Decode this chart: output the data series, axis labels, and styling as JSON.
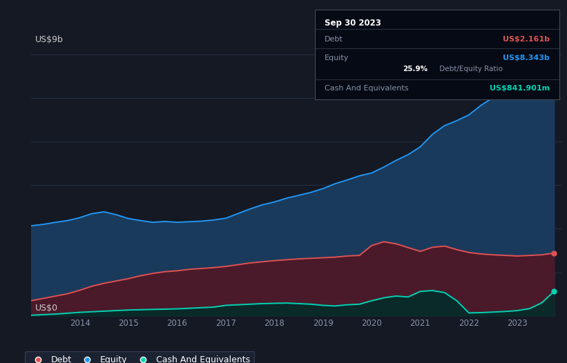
{
  "bg_color": "#141924",
  "plot_bg_color": "#141924",
  "title_y_label": "US$9b",
  "title_y_label_zero": "US$0",
  "ylabel_color": "#cccccc",
  "grid_color": "#252d3d",
  "equity_color": "#2196f3",
  "debt_color": "#e05252",
  "cash_color": "#00d4b4",
  "equity_fill": "#1a3a5c",
  "debt_fill": "#4a1a2a",
  "cash_fill": "#0a2a2a",
  "legend_bg": "#1e2535",
  "legend_border": "#3a4055",
  "tooltip_bg": "#050a14",
  "tooltip_border": "#333a4a",
  "tooltip_date": "Sep 30 2023",
  "tooltip_debt_label": "Debt",
  "tooltip_debt_value": "US$2.161b",
  "tooltip_equity_label": "Equity",
  "tooltip_equity_value": "US$8.343b",
  "tooltip_ratio_value": "25.9%",
  "tooltip_ratio_label": " Debt/Equity Ratio",
  "tooltip_cash_label": "Cash And Equivalents",
  "tooltip_cash_value": "US$841.901m",
  "legend_items": [
    "Debt",
    "Equity",
    "Cash And Equivalents"
  ],
  "x": [
    2013.0,
    2013.25,
    2013.5,
    2013.75,
    2014.0,
    2014.25,
    2014.5,
    2014.75,
    2015.0,
    2015.25,
    2015.5,
    2015.75,
    2016.0,
    2016.25,
    2016.5,
    2016.75,
    2017.0,
    2017.25,
    2017.5,
    2017.75,
    2018.0,
    2018.25,
    2018.5,
    2018.75,
    2019.0,
    2019.25,
    2019.5,
    2019.75,
    2020.0,
    2020.25,
    2020.5,
    2020.75,
    2021.0,
    2021.25,
    2021.5,
    2021.75,
    2022.0,
    2022.25,
    2022.5,
    2022.75,
    2023.0,
    2023.25,
    2023.5,
    2023.75
  ],
  "equity": [
    3.1,
    3.15,
    3.22,
    3.28,
    3.38,
    3.52,
    3.58,
    3.48,
    3.35,
    3.28,
    3.22,
    3.25,
    3.22,
    3.24,
    3.26,
    3.3,
    3.36,
    3.52,
    3.68,
    3.82,
    3.92,
    4.05,
    4.15,
    4.25,
    4.38,
    4.55,
    4.68,
    4.82,
    4.92,
    5.12,
    5.35,
    5.55,
    5.82,
    6.25,
    6.55,
    6.72,
    6.92,
    7.25,
    7.52,
    7.72,
    7.92,
    8.12,
    8.25,
    8.343
  ],
  "debt": [
    0.52,
    0.6,
    0.68,
    0.76,
    0.88,
    1.02,
    1.12,
    1.2,
    1.28,
    1.38,
    1.46,
    1.52,
    1.55,
    1.6,
    1.63,
    1.66,
    1.7,
    1.76,
    1.82,
    1.86,
    1.9,
    1.93,
    1.96,
    1.98,
    2.0,
    2.02,
    2.06,
    2.08,
    2.42,
    2.55,
    2.48,
    2.35,
    2.22,
    2.36,
    2.4,
    2.28,
    2.18,
    2.13,
    2.1,
    2.08,
    2.06,
    2.08,
    2.1,
    2.161
  ],
  "cash": [
    0.02,
    0.04,
    0.06,
    0.09,
    0.12,
    0.14,
    0.16,
    0.18,
    0.2,
    0.21,
    0.22,
    0.23,
    0.24,
    0.26,
    0.28,
    0.3,
    0.36,
    0.38,
    0.4,
    0.42,
    0.43,
    0.44,
    0.42,
    0.4,
    0.36,
    0.34,
    0.38,
    0.4,
    0.52,
    0.62,
    0.68,
    0.65,
    0.84,
    0.87,
    0.8,
    0.52,
    0.1,
    0.11,
    0.13,
    0.15,
    0.18,
    0.25,
    0.45,
    0.842
  ],
  "ylim_max": 9.0,
  "yticks": [
    0,
    1.5,
    3.0,
    4.5,
    6.0,
    7.5,
    9.0
  ],
  "xtick_years": [
    2014,
    2015,
    2016,
    2017,
    2018,
    2019,
    2020,
    2021,
    2022,
    2023
  ]
}
